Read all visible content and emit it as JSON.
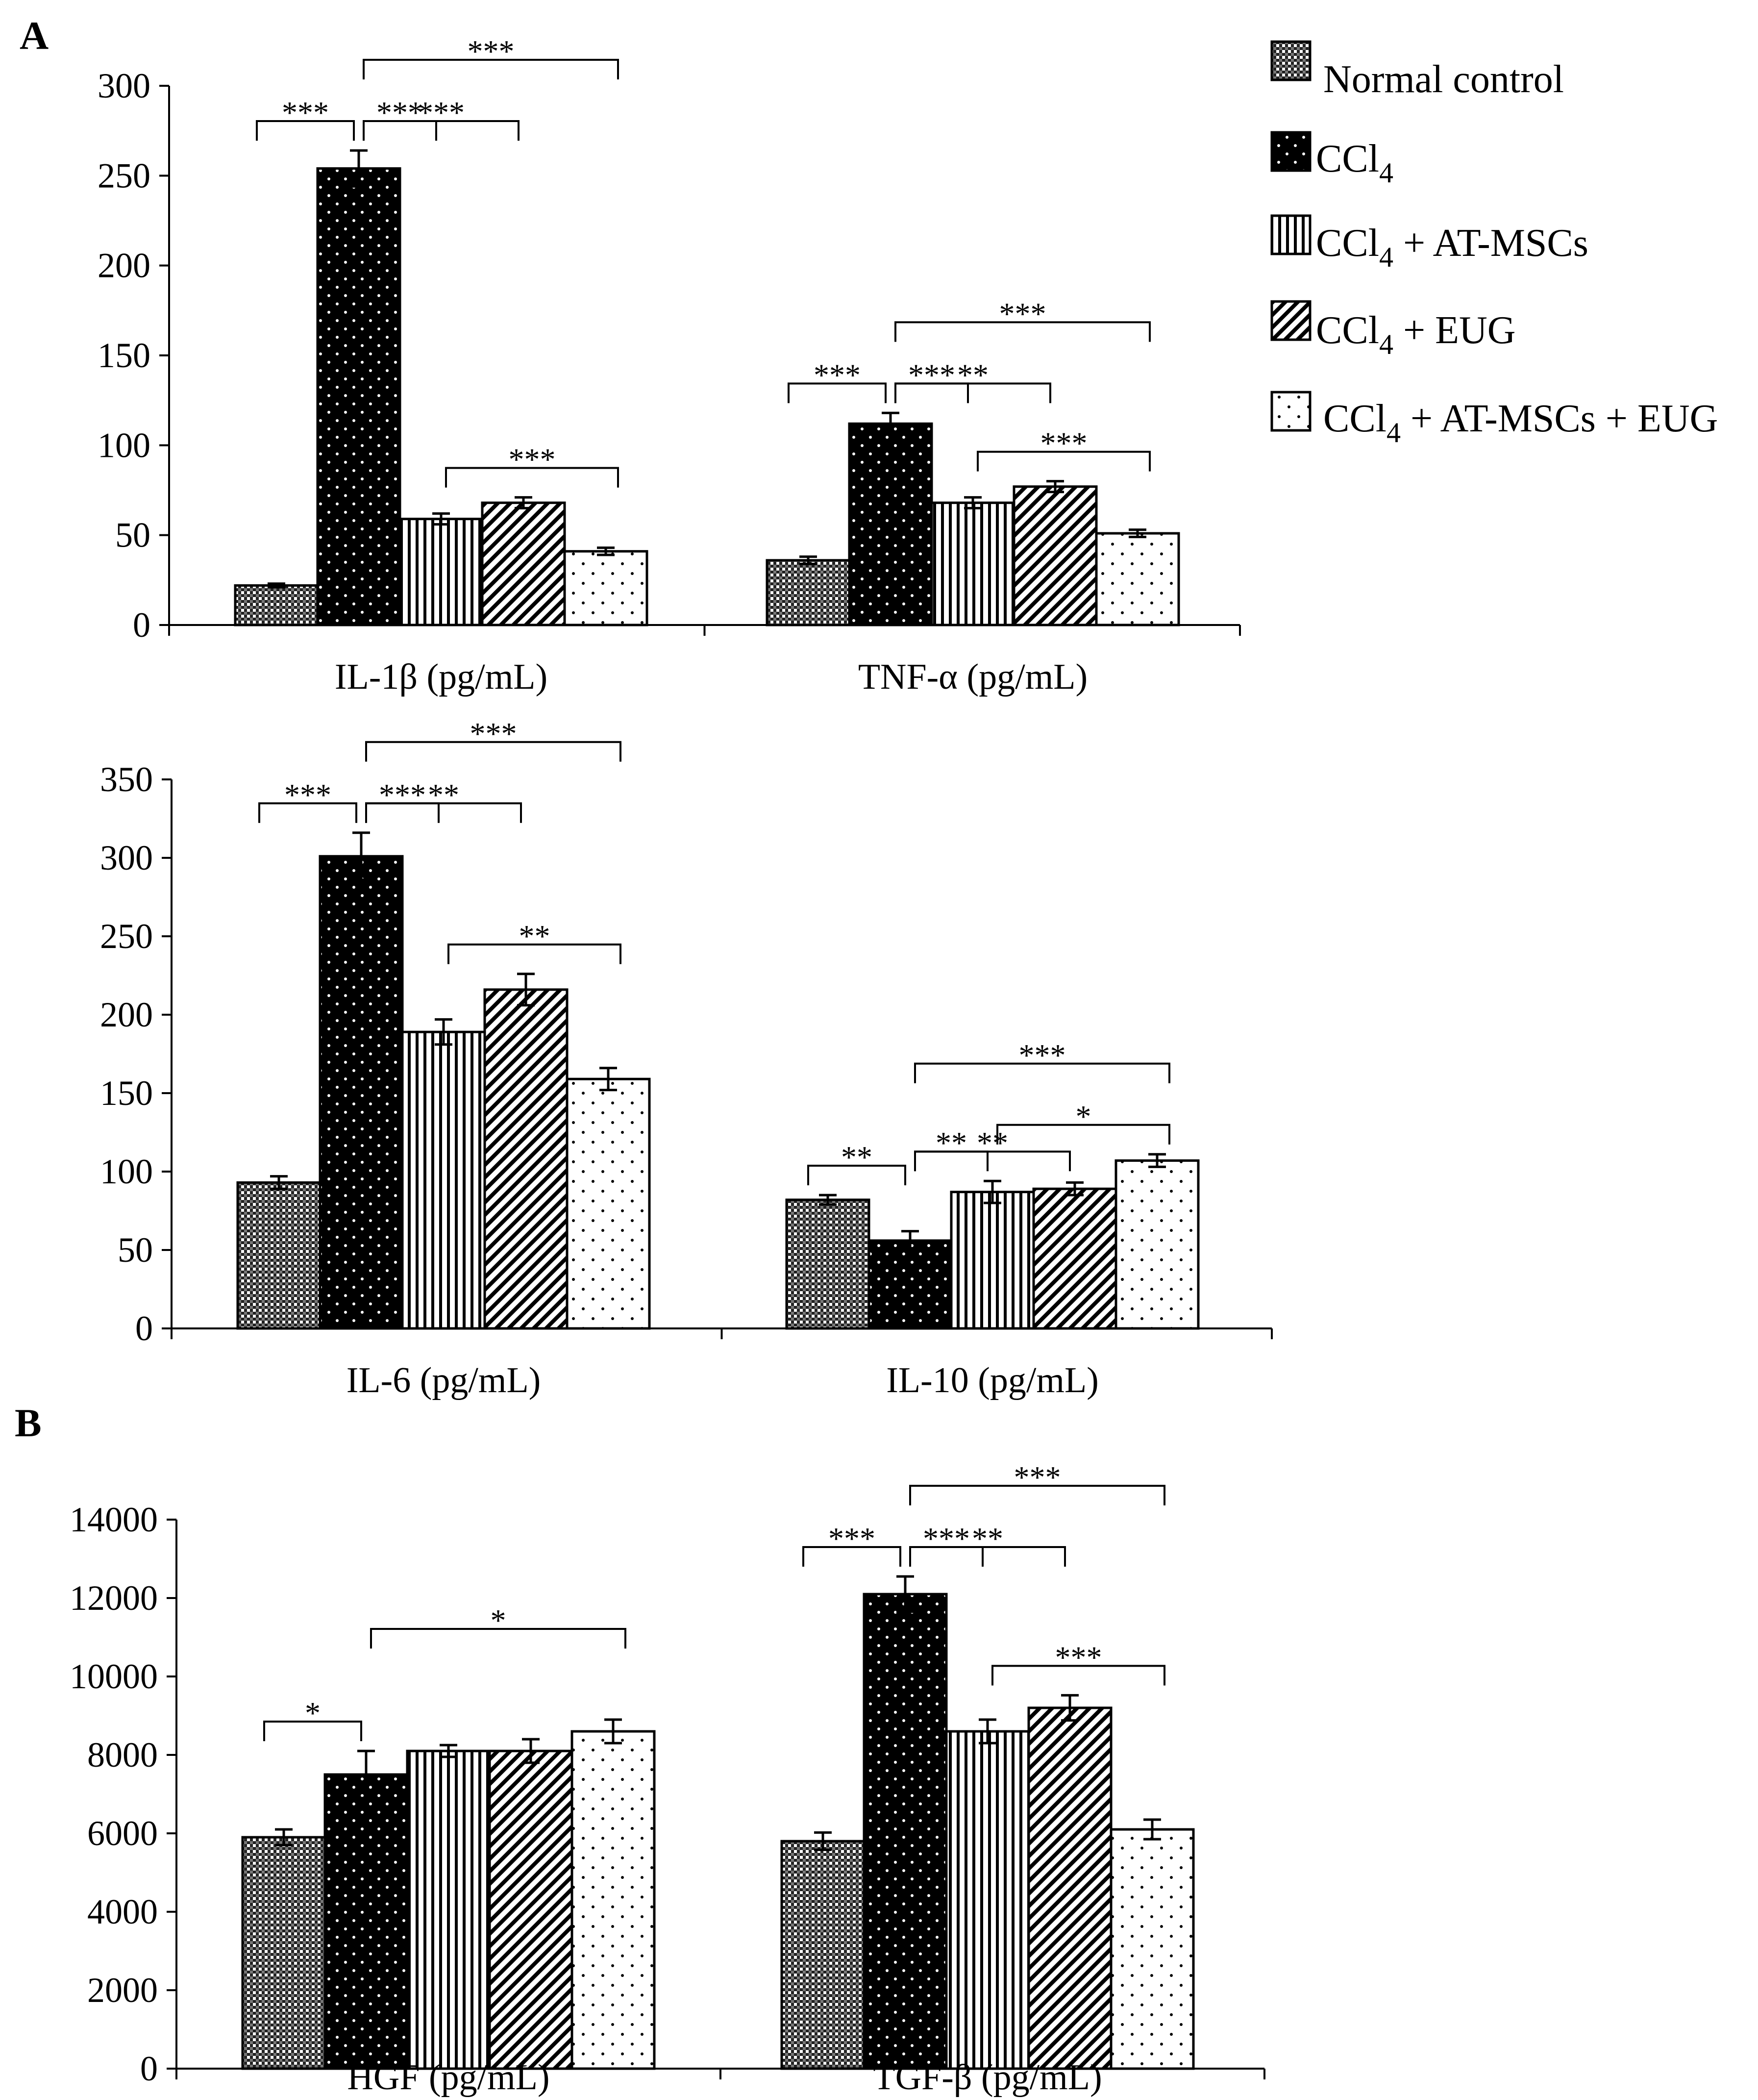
{
  "panel_labels": [
    "A",
    "B"
  ],
  "colors": {
    "ink": "#000000",
    "background": "#ffffff"
  },
  "legend": {
    "items": [
      {
        "label": "Normal control",
        "pattern": "checker"
      },
      {
        "label": "CCl4",
        "base": "CCl",
        "sub": "4",
        "rest": "",
        "pattern": "dark-dots"
      },
      {
        "label": "CCl4 + AT-MSCs",
        "base": "CCl",
        "sub": "4",
        "rest": " + AT-MSCs",
        "pattern": "vstripes"
      },
      {
        "label": "CCl4 + EUG",
        "base": "CCl",
        "sub": "4",
        "rest": " + EUG",
        "pattern": "diag"
      },
      {
        "label": "CCl4 + AT-MSCs + EUG",
        "base": "CCl",
        "sub": "4",
        "rest": " + AT-MSCs + EUG",
        "pattern": "light-dots"
      }
    ]
  },
  "chart_data": [
    {
      "type": "bar",
      "panel": "A",
      "ylim": [
        0,
        300
      ],
      "yticks": [
        0,
        50,
        100,
        150,
        200,
        250,
        300
      ],
      "categories": [
        "IL-1β (pg/mL)",
        "TNF-α (pg/mL)"
      ],
      "series": [
        {
          "name": "Normal control",
          "values": [
            22,
            36
          ],
          "errors": [
            1,
            2
          ]
        },
        {
          "name": "CCl4",
          "values": [
            254,
            112
          ],
          "errors": [
            10,
            6
          ]
        },
        {
          "name": "CCl4 + AT-MSCs",
          "values": [
            59,
            68
          ],
          "errors": [
            3,
            3
          ]
        },
        {
          "name": "CCl4 + EUG",
          "values": [
            68,
            77
          ],
          "errors": [
            3,
            3
          ]
        },
        {
          "name": "CCl4 + AT-MSCs + EUG",
          "values": [
            41,
            51
          ],
          "errors": [
            2,
            2
          ]
        }
      ],
      "significance": [
        {
          "category": 0,
          "from": 0,
          "to": 1,
          "label": "***"
        },
        {
          "category": 0,
          "from": 1,
          "to": 2,
          "label": "***"
        },
        {
          "category": 0,
          "from": 2,
          "to": 4,
          "label": "***"
        },
        {
          "category": 0,
          "from": 1,
          "to": 3,
          "label": "***"
        },
        {
          "category": 0,
          "from": 1,
          "to": 4,
          "label": "***"
        },
        {
          "category": 1,
          "from": 0,
          "to": 1,
          "label": "***"
        },
        {
          "category": 1,
          "from": 1,
          "to": 2,
          "label": "***"
        },
        {
          "category": 1,
          "from": 2,
          "to": 4,
          "label": "***"
        },
        {
          "category": 1,
          "from": 1,
          "to": 3,
          "label": "**"
        },
        {
          "category": 1,
          "from": 1,
          "to": 4,
          "label": "***"
        }
      ]
    },
    {
      "type": "bar",
      "panel": "A",
      "ylim": [
        0,
        350
      ],
      "yticks": [
        0,
        50,
        100,
        150,
        200,
        250,
        300,
        350
      ],
      "categories": [
        "IL-6 (pg/mL)",
        "IL-10 (pg/mL)"
      ],
      "series": [
        {
          "name": "Normal control",
          "values": [
            93,
            82
          ],
          "errors": [
            4,
            3
          ]
        },
        {
          "name": "CCl4",
          "values": [
            301,
            56
          ],
          "errors": [
            15,
            6
          ]
        },
        {
          "name": "CCl4 + AT-MSCs",
          "values": [
            189,
            87
          ],
          "errors": [
            8,
            7
          ]
        },
        {
          "name": "CCl4 + EUG",
          "values": [
            216,
            89
          ],
          "errors": [
            10,
            4
          ]
        },
        {
          "name": "CCl4 + AT-MSCs + EUG",
          "values": [
            159,
            107
          ],
          "errors": [
            7,
            4
          ]
        }
      ],
      "significance": [
        {
          "category": 0,
          "from": 0,
          "to": 1,
          "label": "***"
        },
        {
          "category": 0,
          "from": 1,
          "to": 2,
          "label": "***"
        },
        {
          "category": 0,
          "from": 2,
          "to": 4,
          "label": "**"
        },
        {
          "category": 0,
          "from": 1,
          "to": 3,
          "label": "**"
        },
        {
          "category": 0,
          "from": 1,
          "to": 4,
          "label": "***"
        },
        {
          "category": 1,
          "from": 0,
          "to": 1,
          "label": "**"
        },
        {
          "category": 1,
          "from": 1,
          "to": 2,
          "label": "**"
        },
        {
          "category": 1,
          "from": 2,
          "to": 4,
          "label": "*"
        },
        {
          "category": 1,
          "from": 1,
          "to": 3,
          "label": "**"
        },
        {
          "category": 1,
          "from": 1,
          "to": 4,
          "label": "***"
        }
      ]
    },
    {
      "type": "bar",
      "panel": "B",
      "ylim": [
        0,
        14000
      ],
      "yticks": [
        0,
        2000,
        4000,
        6000,
        8000,
        10000,
        12000,
        14000
      ],
      "categories": [
        "HGF (pg/mL)",
        "TGF-β (pg/mL)"
      ],
      "series": [
        {
          "name": "Normal control",
          "values": [
            5900,
            5800
          ],
          "errors": [
            200,
            220
          ]
        },
        {
          "name": "CCl4",
          "values": [
            7500,
            12100
          ],
          "errors": [
            600,
            450
          ]
        },
        {
          "name": "CCl4 + AT-MSCs",
          "values": [
            8100,
            8600
          ],
          "errors": [
            150,
            300
          ]
        },
        {
          "name": "CCl4 + EUG",
          "values": [
            8100,
            9200
          ],
          "errors": [
            300,
            320
          ]
        },
        {
          "name": "CCl4 + AT-MSCs + EUG",
          "values": [
            8600,
            6100
          ],
          "errors": [
            300,
            250
          ]
        }
      ],
      "significance": [
        {
          "category": 0,
          "from": 0,
          "to": 1,
          "label": "*"
        },
        {
          "category": 0,
          "from": 1,
          "to": 4,
          "label": "*"
        },
        {
          "category": 1,
          "from": 0,
          "to": 1,
          "label": "***"
        },
        {
          "category": 1,
          "from": 1,
          "to": 2,
          "label": "***"
        },
        {
          "category": 1,
          "from": 2,
          "to": 4,
          "label": "***"
        },
        {
          "category": 1,
          "from": 1,
          "to": 3,
          "label": "**"
        },
        {
          "category": 1,
          "from": 1,
          "to": 4,
          "label": "***"
        }
      ]
    }
  ]
}
